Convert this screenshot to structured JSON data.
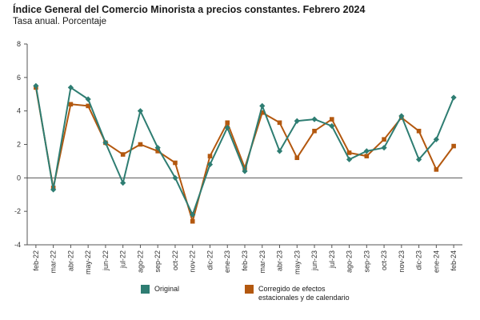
{
  "title": "Índice General del Comercio Minorista a precios constantes. Febrero 2024",
  "subtitle": "Tasa anual. Porcentaje",
  "colors": {
    "original": "#2e7d72",
    "corregido": "#b3580f"
  },
  "chart_data": {
    "type": "line",
    "categories": [
      "feb-22",
      "mar-22",
      "abr-22",
      "may-22",
      "jun-22",
      "jul-22",
      "ago-22",
      "sep-22",
      "oct-22",
      "nov-22",
      "dic-22",
      "ene-23",
      "feb-23",
      "mar-23",
      "abr-23",
      "may-23",
      "jun-23",
      "jul-23",
      "ago-23",
      "sep-23",
      "oct-23",
      "nov-23",
      "dic-23",
      "ene-24",
      "feb-24"
    ],
    "ylim": [
      -4,
      8
    ],
    "yticks": [
      -4,
      -2,
      0,
      2,
      4,
      6,
      8
    ],
    "grid": false,
    "legend_position": "bottom",
    "series": [
      {
        "name": "Original",
        "color": "#2e7d72",
        "marker": "diamond",
        "values": [
          5.5,
          -0.7,
          5.4,
          4.7,
          2.1,
          -0.3,
          4.0,
          1.8,
          0.0,
          -2.2,
          0.8,
          3.0,
          0.4,
          4.3,
          1.6,
          3.4,
          3.5,
          3.1,
          1.1,
          1.6,
          1.8,
          3.7,
          1.1,
          2.3,
          4.8
        ]
      },
      {
        "name": "Corregido de efectos\nestacionales y de calendario",
        "color": "#b3580f",
        "marker": "square",
        "values": [
          5.4,
          -0.6,
          4.4,
          4.3,
          2.1,
          1.4,
          2.0,
          1.6,
          0.9,
          -2.6,
          1.3,
          3.3,
          0.6,
          3.9,
          3.3,
          1.2,
          2.8,
          3.5,
          1.5,
          1.3,
          2.3,
          3.6,
          2.8,
          0.5,
          1.9
        ]
      }
    ]
  }
}
